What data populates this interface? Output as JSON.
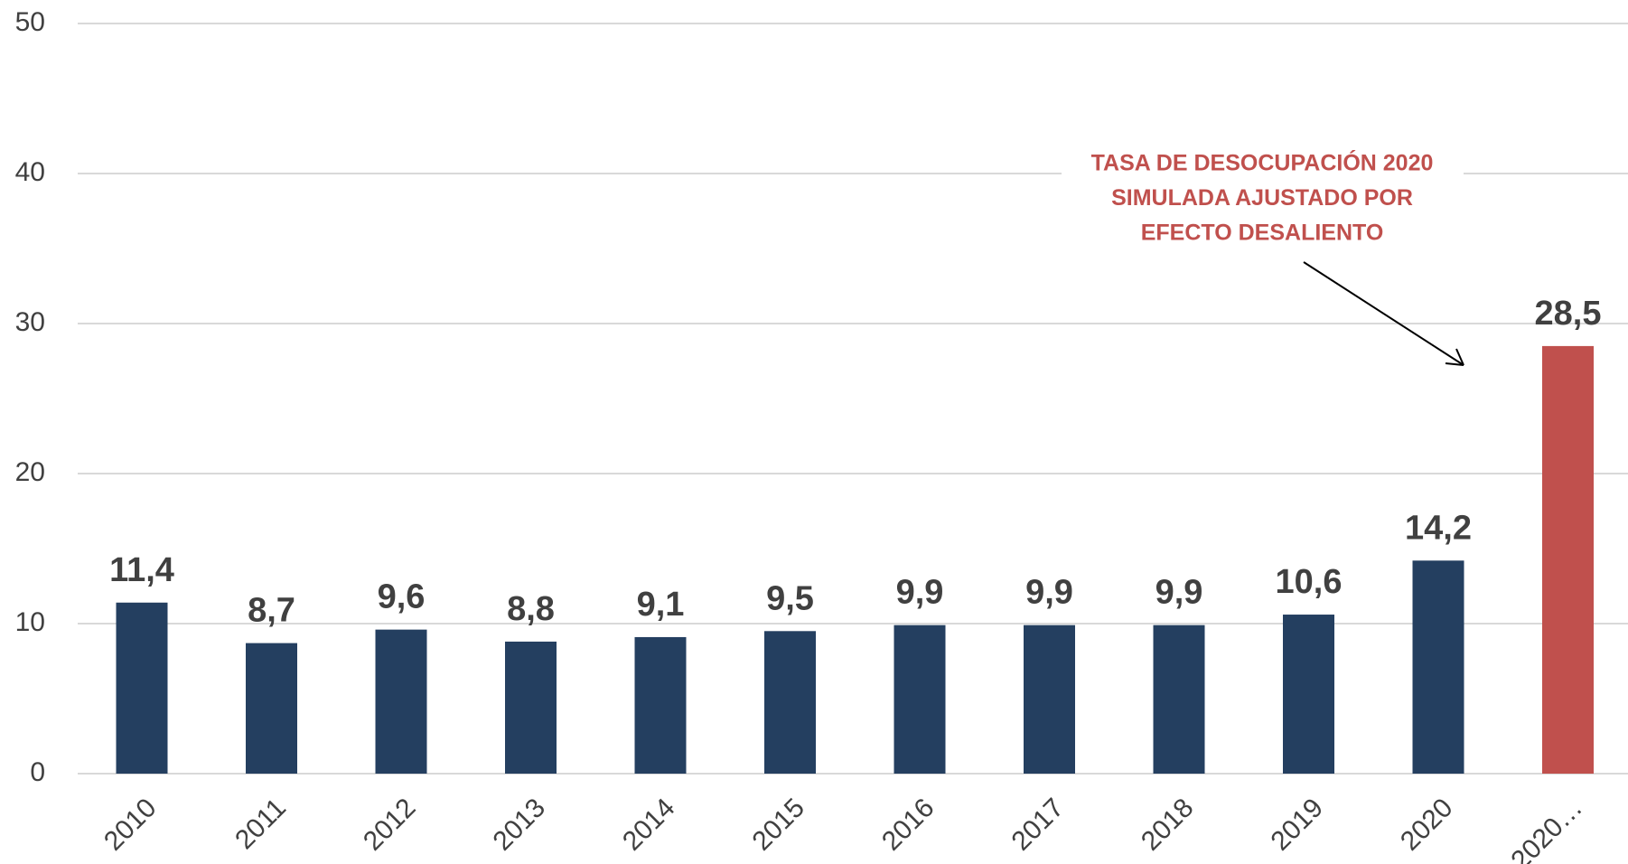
{
  "chart_data": {
    "type": "bar",
    "categories": [
      "2010",
      "2011",
      "2012",
      "2013",
      "2014",
      "2015",
      "2016",
      "2017",
      "2018",
      "2019",
      "2020",
      "2020…"
    ],
    "values": [
      11.4,
      8.7,
      9.6,
      8.8,
      9.1,
      9.5,
      9.9,
      9.9,
      9.9,
      10.6,
      14.2,
      28.5
    ],
    "value_labels": [
      "11,4",
      "8,7",
      "9,6",
      "8,8",
      "9,1",
      "9,5",
      "9,9",
      "9,9",
      "9,9",
      "10,6",
      "14,2",
      "28,5"
    ],
    "colors": [
      "#243f60",
      "#243f60",
      "#243f60",
      "#243f60",
      "#243f60",
      "#243f60",
      "#243f60",
      "#243f60",
      "#243f60",
      "#243f60",
      "#243f60",
      "#c0504d"
    ],
    "ylim": [
      0,
      50
    ],
    "yticks": [
      0,
      10,
      20,
      30,
      40,
      50
    ],
    "grid": true,
    "annotation": [
      "TASA DE DESOCUPACIÓN 2020",
      "SIMULADA AJUSTADO POR",
      "EFECTO DESALIENTO"
    ],
    "annotation_color": "#c0504d"
  }
}
